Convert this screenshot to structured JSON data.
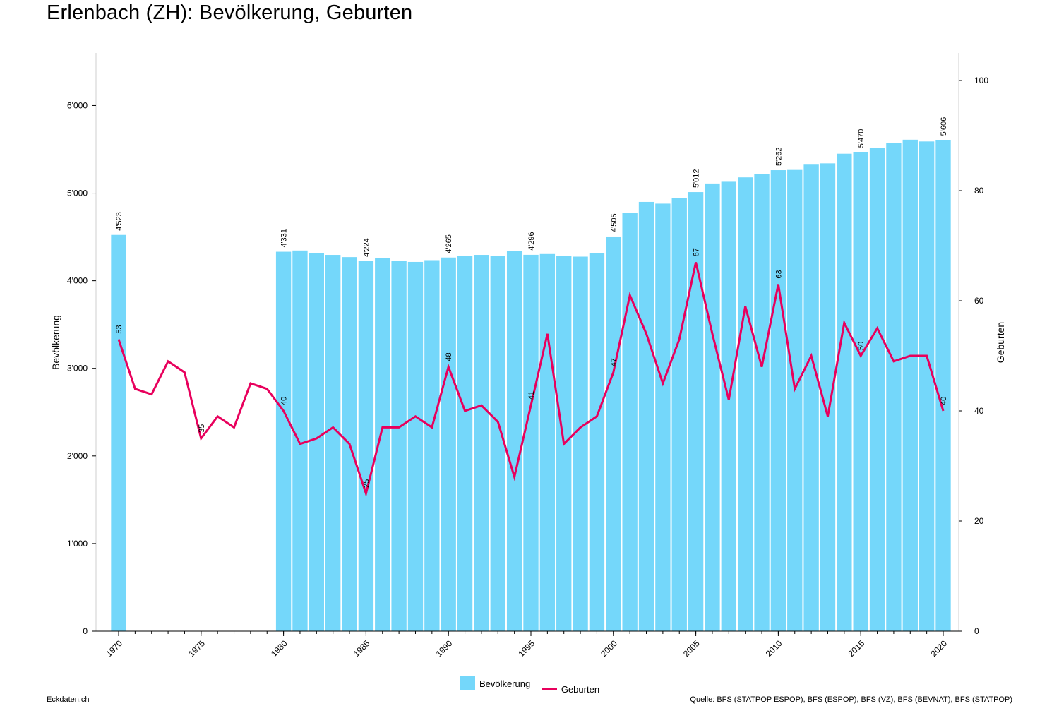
{
  "title": "Erlenbach (ZH): Bevölkerung, Geburten",
  "footer": {
    "brand": "Eckdaten.ch",
    "source": "Quelle: BFS (STATPOP ESPOP), BFS (ESPOP), BFS (VZ), BFS (BEVNAT), BFS (STATPOP)"
  },
  "colors": {
    "population": "#74d7fa",
    "births": "#e8005c"
  },
  "chart_data": {
    "type": "bar+line",
    "x": [
      1970,
      1971,
      1972,
      1973,
      1974,
      1975,
      1976,
      1977,
      1978,
      1979,
      1980,
      1981,
      1982,
      1983,
      1984,
      1985,
      1986,
      1987,
      1988,
      1989,
      1990,
      1991,
      1992,
      1993,
      1994,
      1995,
      1996,
      1997,
      1998,
      1999,
      2000,
      2001,
      2002,
      2003,
      2004,
      2005,
      2006,
      2007,
      2008,
      2009,
      2010,
      2011,
      2012,
      2013,
      2014,
      2015,
      2016,
      2017,
      2018,
      2019,
      2020
    ],
    "series": [
      {
        "name": "Bevölkerung",
        "type": "bar",
        "axis": "left",
        "values": [
          4523,
          null,
          null,
          null,
          null,
          null,
          null,
          null,
          null,
          null,
          4331,
          4345,
          4315,
          4295,
          4270,
          4224,
          4260,
          4225,
          4215,
          4235,
          4265,
          4280,
          4295,
          4280,
          4340,
          4296,
          4305,
          4285,
          4275,
          4315,
          4505,
          4775,
          4900,
          4880,
          4940,
          5012,
          5110,
          5130,
          5180,
          5215,
          5262,
          5265,
          5325,
          5340,
          5450,
          5470,
          5515,
          5575,
          5610,
          5590,
          5606
        ]
      },
      {
        "name": "Geburten",
        "type": "line",
        "axis": "right",
        "values": [
          53,
          44,
          43,
          49,
          47,
          35,
          39,
          37,
          45,
          44,
          40,
          34,
          35,
          37,
          34,
          25,
          37,
          37,
          39,
          37,
          48,
          40,
          41,
          38,
          28,
          41,
          54,
          34,
          37,
          39,
          47,
          61,
          54,
          45,
          53,
          67,
          54,
          42,
          59,
          48,
          63,
          44,
          50,
          39,
          56,
          50,
          55,
          49,
          50,
          50,
          40
        ]
      }
    ],
    "bar_labels": {
      "1970": "4'523",
      "1980": "4'331",
      "1985": "4'224",
      "1990": "4'265",
      "1995": "4'296",
      "2000": "4'505",
      "2005": "5'012",
      "2010": "5'262",
      "2015": "5'470",
      "2020": "5'606"
    },
    "line_labels": {
      "1970": "53",
      "1975": "35",
      "1980": "40",
      "1985": "25",
      "1990": "48",
      "1995": "41",
      "2000": "47",
      "2005": "67",
      "2010": "63",
      "2015": "50",
      "2020": "40"
    },
    "x_ticks": [
      1970,
      1975,
      1980,
      1985,
      1990,
      1995,
      2000,
      2005,
      2010,
      2015,
      2020
    ],
    "y_left": {
      "label": "Bevölkerung",
      "ylim": [
        0,
        6600
      ],
      "ticks": [
        0,
        1000,
        2000,
        3000,
        4000,
        5000,
        6000
      ],
      "tick_labels": [
        "0",
        "1'000",
        "2'000",
        "3'000",
        "4'000",
        "5'000",
        "6'000"
      ]
    },
    "y_right": {
      "label": "Geburten",
      "ylim": [
        0,
        105
      ],
      "ticks": [
        0,
        20,
        40,
        60,
        80,
        100
      ],
      "tick_labels": [
        "0",
        "20",
        "40",
        "60",
        "80",
        "100"
      ]
    },
    "legend": [
      "Bevölkerung",
      "Geburten"
    ],
    "legend_position": "bottom",
    "grid": false
  }
}
